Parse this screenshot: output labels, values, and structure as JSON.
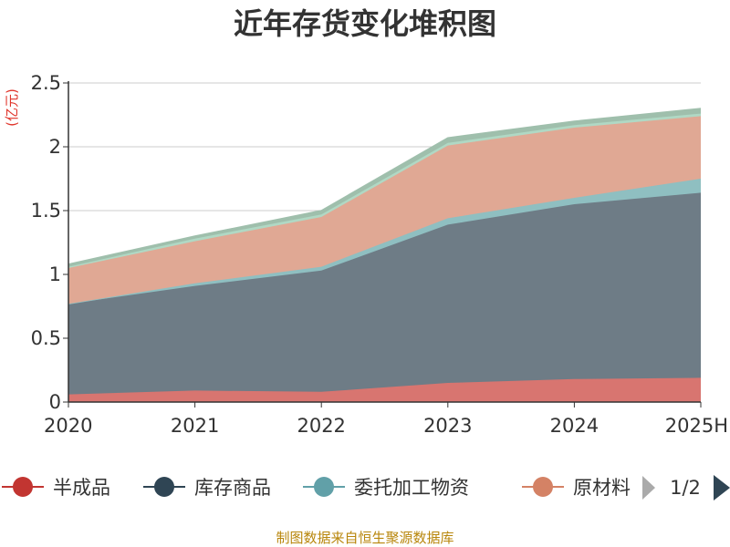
{
  "chart_data": {
    "type": "area",
    "stacked": true,
    "title": "近年存货变化堆积图",
    "unit": "(亿元)",
    "categories": [
      "2020",
      "2021",
      "2022",
      "2023",
      "2024",
      "2025H"
    ],
    "ylim": [
      0,
      2.5
    ],
    "yticks": [
      "0",
      "0.5",
      "1",
      "1.5",
      "2",
      "2.5"
    ],
    "grid": true,
    "legend_position": "bottom",
    "series": [
      {
        "name": "半成品",
        "color": "#d87570",
        "legend_color": "#c23531",
        "values": [
          0.06,
          0.09,
          0.08,
          0.15,
          0.18,
          0.19
        ]
      },
      {
        "name": "库存商品",
        "color": "#6e7c86",
        "legend_color": "#2f4554",
        "values": [
          0.71,
          0.82,
          0.95,
          1.24,
          1.37,
          1.45
        ]
      },
      {
        "name": "委托加工物资",
        "color": "#8fbfc1",
        "legend_color": "#61a0a8",
        "values": [
          0.0,
          0.02,
          0.03,
          0.05,
          0.05,
          0.11
        ]
      },
      {
        "name": "原材料",
        "color": "#e0a894",
        "legend_color": "#d48265",
        "values": [
          0.28,
          0.33,
          0.39,
          0.57,
          0.55,
          0.49
        ]
      },
      {
        "name": "",
        "color": "#b0d8c4",
        "values": [
          0.01,
          0.02,
          0.02,
          0.02,
          0.02,
          0.02
        ]
      },
      {
        "name": "",
        "color": "#9fbfac",
        "values": [
          0.02,
          0.02,
          0.03,
          0.04,
          0.03,
          0.04
        ]
      }
    ]
  },
  "legend": {
    "items": [
      "半成品",
      "库存商品",
      "委托加工物资",
      "原材料"
    ],
    "page_text": "1/2"
  },
  "icons": {
    "prev": "triangle-left-icon",
    "next": "triangle-right-icon"
  },
  "source": "制图数据来自恒生聚源数据库"
}
